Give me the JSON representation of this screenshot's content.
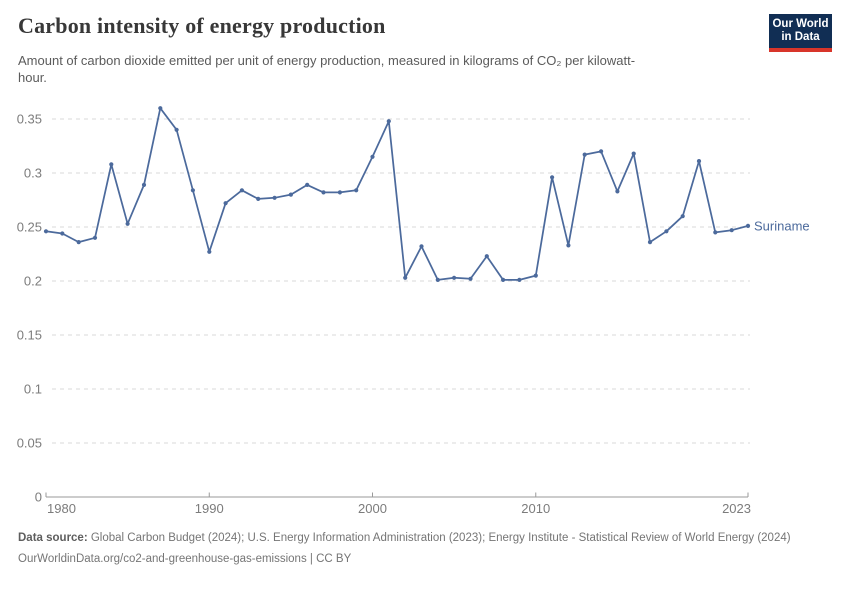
{
  "header": {
    "title": "Carbon intensity of energy production",
    "subtitle": "Amount of carbon dioxide emitted per unit of energy production, measured in kilograms of CO₂ per kilowatt-hour.",
    "logo": {
      "line1": "Our World",
      "line2": "in Data",
      "bg_color": "#112e54",
      "accent_color": "#d8352a"
    }
  },
  "chart_data": {
    "type": "line",
    "title": "Carbon intensity of energy production",
    "xlabel": "",
    "ylabel": "kg CO₂ per kilowatt-hour",
    "xlim": [
      1980,
      2023
    ],
    "ylim": [
      0,
      0.36
    ],
    "yticks": [
      0,
      0.05,
      0.1,
      0.15,
      0.2,
      0.25,
      0.3,
      0.35
    ],
    "xticks": [
      1980,
      1990,
      2000,
      2010,
      2023
    ],
    "grid": "horizontal-dashed",
    "grid_color": "#dadada",
    "axis_color": "#9a9a9a",
    "tick_label_color": "#7c7c7c",
    "legend_position": "end-of-line-label",
    "series": [
      {
        "name": "Suriname",
        "color": "#4c6a9c",
        "x": [
          1980,
          1981,
          1982,
          1983,
          1984,
          1985,
          1986,
          1987,
          1988,
          1989,
          1990,
          1991,
          1992,
          1993,
          1994,
          1995,
          1996,
          1997,
          1998,
          1999,
          2000,
          2001,
          2002,
          2003,
          2004,
          2005,
          2006,
          2007,
          2008,
          2009,
          2010,
          2011,
          2012,
          2013,
          2014,
          2015,
          2016,
          2017,
          2018,
          2019,
          2020,
          2021,
          2022,
          2023
        ],
        "values": [
          0.246,
          0.244,
          0.236,
          0.24,
          0.308,
          0.253,
          0.289,
          0.36,
          0.34,
          0.284,
          0.227,
          0.272,
          0.284,
          0.276,
          0.277,
          0.28,
          0.289,
          0.282,
          0.282,
          0.284,
          0.315,
          0.348,
          0.203,
          0.232,
          0.201,
          0.203,
          0.202,
          0.223,
          0.201,
          0.201,
          0.205,
          0.296,
          0.233,
          0.317,
          0.32,
          0.283,
          0.318,
          0.236,
          0.246,
          0.26,
          0.311,
          0.245,
          0.247,
          0.251
        ]
      }
    ]
  },
  "footer": {
    "datasource_label": "Data source:",
    "datasource_text": " Global Carbon Budget (2024); U.S. Energy Information Administration (2023); Energy Institute - Statistical Review of World Energy (2024)",
    "link": "OurWorldinData.org/co2-and-greenhouse-gas-emissions",
    "separator": " | ",
    "license": "CC BY"
  }
}
